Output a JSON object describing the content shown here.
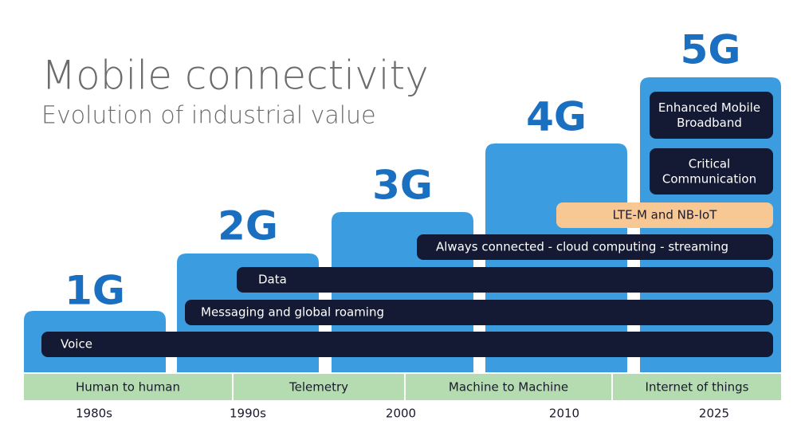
{
  "header": {
    "title": "Mobile connectivity",
    "subtitle": "Evolution of industrial value"
  },
  "generations": [
    "1G",
    "2G",
    "3G",
    "4G",
    "5G"
  ],
  "bars": [
    "Voice",
    "Messaging and global roaming",
    "Data",
    "Always connected - cloud computing - streaming",
    "LTE-M and NB-IoT",
    "Critical Communication",
    "Enhanced Mobile Broadband"
  ],
  "eras": [
    "Human to human",
    "Telemetry",
    "Machine to Machine",
    "Internet of things"
  ],
  "years": [
    "1980s",
    "1990s",
    "2000",
    "2010",
    "2025"
  ]
}
